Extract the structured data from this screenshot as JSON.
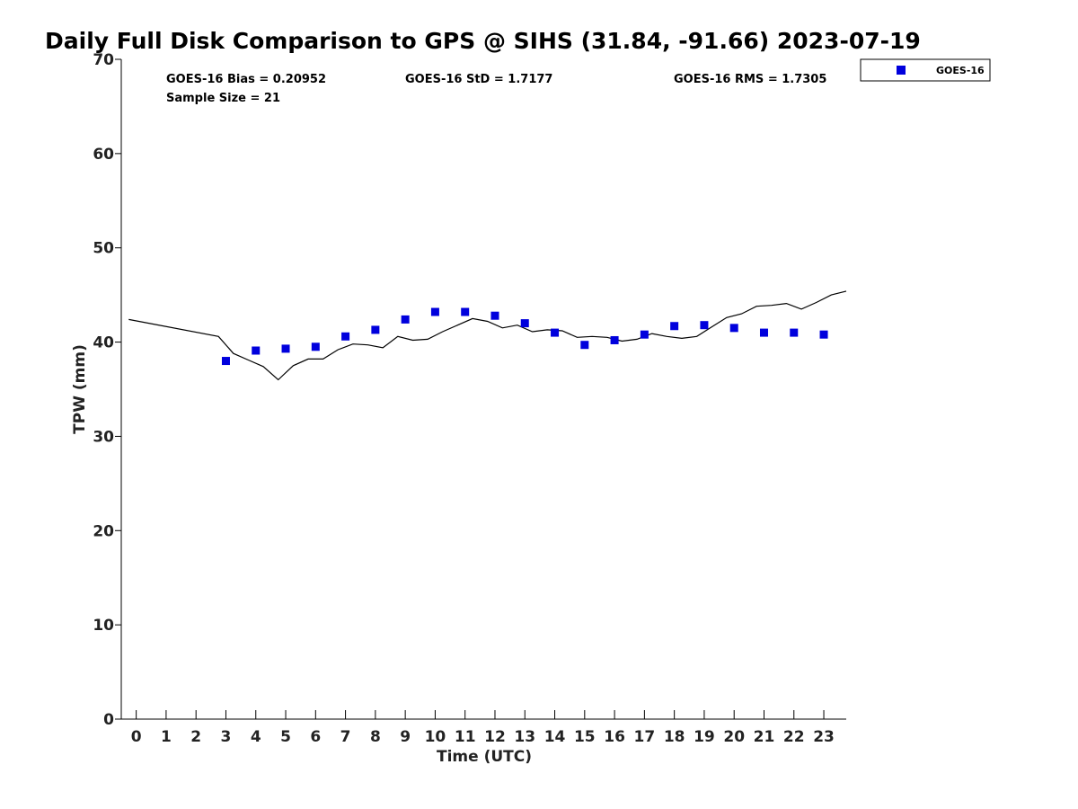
{
  "chart_data": {
    "type": "scatter",
    "title": "Daily Full Disk Comparison to GPS @ SIHS (31.84, -91.66) 2023-07-19",
    "xlabel": "Time (UTC)",
    "ylabel": "TPW (mm)",
    "xlim": [
      -0.5,
      23.75
    ],
    "ylim": [
      0,
      70
    ],
    "xticks": [
      "0",
      "1",
      "2",
      "3",
      "4",
      "5",
      "6",
      "7",
      "8",
      "9",
      "10",
      "11",
      "12",
      "13",
      "14",
      "15",
      "16",
      "17",
      "18",
      "19",
      "20",
      "21",
      "22",
      "23"
    ],
    "yticks": [
      "0",
      "10",
      "20",
      "30",
      "40",
      "50",
      "60",
      "70"
    ],
    "grid": false,
    "legend_position": "top-right (outside)",
    "stats": {
      "bias": "GOES-16 Bias = 0.20952",
      "std": "GOES-16 StD = 1.7177",
      "rms": "GOES-16 RMS = 1.7305",
      "sample": "Sample Size = 21"
    },
    "series": [
      {
        "name": "GOES-16",
        "kind": "scatter",
        "color": "#0000dd",
        "marker": "square",
        "x": [
          3,
          4,
          5,
          6,
          7,
          8,
          9,
          10,
          11,
          12,
          13,
          14,
          15,
          16,
          17,
          18,
          19,
          20,
          21,
          22,
          23
        ],
        "y": [
          38.0,
          39.1,
          39.3,
          39.5,
          40.6,
          41.3,
          42.4,
          43.2,
          43.2,
          42.8,
          42.0,
          41.0,
          39.7,
          40.2,
          40.8,
          41.7,
          41.8,
          41.5,
          41.0,
          41.0,
          40.8
        ]
      },
      {
        "kind": "line",
        "color": "#000000",
        "x": [
          -0.25,
          2.75,
          3.25,
          3.75,
          4.25,
          4.75,
          5.25,
          5.75,
          6.25,
          6.75,
          7.25,
          7.75,
          8.25,
          8.75,
          9.25,
          9.75,
          10.25,
          10.75,
          11.25,
          11.75,
          12.25,
          12.75,
          13.25,
          13.75,
          14.25,
          14.75,
          15.25,
          15.75,
          16.25,
          16.75,
          17.25,
          17.75,
          18.25,
          18.75,
          19.25,
          19.75,
          20.25,
          20.75,
          21.25,
          21.75,
          22.25,
          22.75,
          23.25,
          23.75
        ],
        "y": [
          42.4,
          40.6,
          38.8,
          38.1,
          37.4,
          36.0,
          37.5,
          38.2,
          38.2,
          39.2,
          39.8,
          39.7,
          39.4,
          40.6,
          40.2,
          40.3,
          41.1,
          41.8,
          42.5,
          42.2,
          41.5,
          41.8,
          41.1,
          41.3,
          41.2,
          40.5,
          40.6,
          40.5,
          40.1,
          40.3,
          40.9,
          40.6,
          40.4,
          40.6,
          41.6,
          42.6,
          43.0,
          43.8,
          43.9,
          44.1,
          43.5,
          44.2,
          45.0,
          45.4
        ]
      }
    ]
  }
}
